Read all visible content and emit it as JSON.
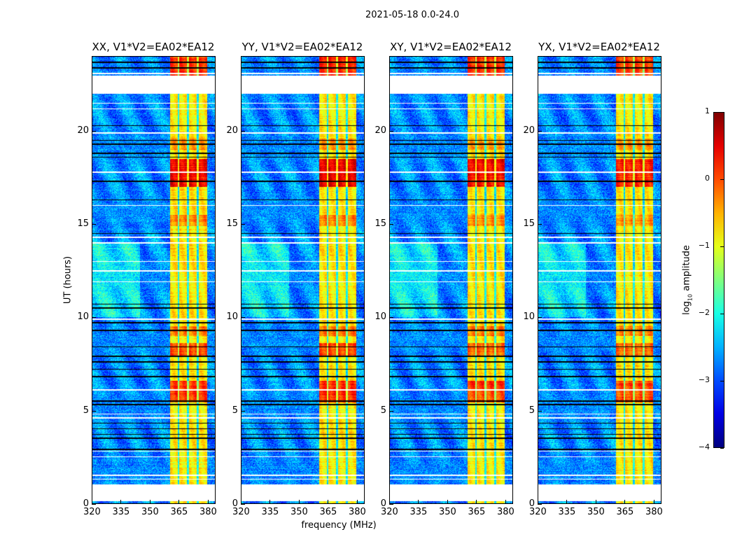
{
  "figure_title": "2021-05-18 0.0-24.0",
  "shared_xlabel": "frequency (MHz)",
  "shared_ylabel": "UT (hours)",
  "colorbar": {
    "label_prefix": "log",
    "label_sub": "10",
    "label_suffix": " amplitude",
    "range": [
      -4,
      1
    ],
    "ticks": [
      1,
      0,
      -1,
      -2,
      -3,
      -4
    ],
    "tick_labels": [
      "1",
      "0",
      "−1",
      "−2",
      "−3",
      "−4"
    ],
    "colormap": "jet"
  },
  "chart_data": [
    {
      "type": "heatmap",
      "title": "XX, V1*V2=EA02*EA12",
      "scale": 1.0,
      "xlim": [
        320,
        384
      ],
      "ylim": [
        0,
        24
      ],
      "xticks": [
        320,
        335,
        350,
        365,
        380
      ],
      "yticks": [
        0,
        5,
        10,
        15,
        20
      ]
    },
    {
      "type": "heatmap",
      "title": "YY, V1*V2=EA02*EA12",
      "scale": 1.05,
      "xlim": [
        320,
        384
      ],
      "ylim": [
        0,
        24
      ],
      "xticks": [
        320,
        335,
        350,
        365,
        380
      ],
      "yticks": [
        0,
        5,
        10,
        15,
        20
      ]
    },
    {
      "type": "heatmap",
      "title": "XY, V1*V2=EA02*EA12",
      "scale": 0.95,
      "xlim": [
        320,
        384
      ],
      "ylim": [
        0,
        24
      ],
      "xticks": [
        320,
        335,
        350,
        365,
        380
      ],
      "yticks": [
        0,
        5,
        10,
        15,
        20
      ]
    },
    {
      "type": "heatmap",
      "title": "YX, V1*V2=EA02*EA12",
      "scale": 0.9,
      "xlim": [
        320,
        384
      ],
      "ylim": [
        0,
        24
      ],
      "xticks": [
        320,
        335,
        350,
        365,
        380
      ],
      "yticks": [
        0,
        5,
        10,
        15,
        20
      ]
    }
  ],
  "heatmap_model": {
    "background_log_amp": -2.7,
    "bright_band_mhz": [
      360.5,
      380
    ],
    "bright_band_log_amp": -0.8,
    "subband_edges_mhz": [
      365,
      370,
      375
    ],
    "bright_time_ranges": [
      [
        17.0,
        18.5,
        1.2
      ],
      [
        5.4,
        6.6,
        0.9
      ],
      [
        7.9,
        8.6,
        0.8
      ],
      [
        22.9,
        24.0,
        1.0
      ],
      [
        14.9,
        15.5,
        0.5
      ],
      [
        9.0,
        9.5,
        0.6
      ],
      [
        19.0,
        19.6,
        0.4
      ]
    ],
    "flagged_time_ranges": [
      [
        0.1,
        1.0
      ],
      [
        22.0,
        23.0
      ]
    ],
    "white_lines_hours": [
      1.3,
      1.5,
      2.5,
      2.8,
      4.6,
      4.8,
      6.1,
      9.9,
      11.9,
      12.5,
      13.0,
      14.0,
      14.3,
      16.0,
      17.8,
      19.9,
      21.2,
      21.5,
      23.1
    ],
    "black_lines_hours": [
      2.9,
      3.5,
      3.7,
      4.0,
      4.3,
      5.3,
      5.5,
      6.8,
      7.2,
      7.6,
      7.9,
      8.4,
      9.3,
      9.7,
      10.5,
      10.7,
      14.5,
      16.3,
      17.3,
      18.6,
      18.8,
      19.3,
      19.5,
      20.3,
      23.4,
      23.7
    ]
  }
}
